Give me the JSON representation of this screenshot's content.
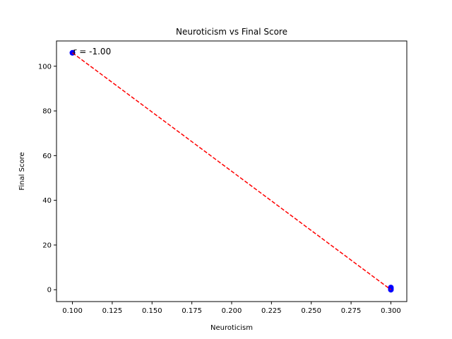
{
  "chart_data": {
    "type": "scatter",
    "title": "Neuroticism vs Final Score",
    "xlabel": "Neuroticism",
    "ylabel": "Final Score",
    "xlim": [
      0.09,
      0.31
    ],
    "ylim": [
      -5.3,
      111.3
    ],
    "xticks": [
      0.1,
      0.125,
      0.15,
      0.175,
      0.2,
      0.225,
      0.25,
      0.275,
      0.3
    ],
    "xtick_labels": [
      "0.100",
      "0.125",
      "0.150",
      "0.175",
      "0.200",
      "0.225",
      "0.250",
      "0.275",
      "0.300"
    ],
    "yticks": [
      0,
      20,
      40,
      60,
      80,
      100
    ],
    "ytick_labels": [
      "0",
      "20",
      "40",
      "60",
      "80",
      "100"
    ],
    "grid": false,
    "points": [
      {
        "x": 0.1,
        "y": 106
      },
      {
        "x": 0.3,
        "y": 1
      },
      {
        "x": 0.3,
        "y": 0
      },
      {
        "x": 0.3,
        "y": 0.5
      }
    ],
    "point_color": "#0000ff",
    "trendline": {
      "x": [
        0.1,
        0.3
      ],
      "y": [
        106,
        0
      ],
      "color": "#ff0000",
      "style": "dashed"
    },
    "annotation": {
      "text": "r = -1.00",
      "x": 0.1,
      "y": 106
    }
  }
}
